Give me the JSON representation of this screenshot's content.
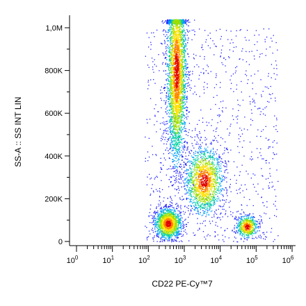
{
  "chart_data": {
    "type": "scatter",
    "subtype": "flow-cytometry-density-dot-plot",
    "xlabel": "CD22 PE-Cy™7",
    "ylabel": "SS-A :: SS INT LIN",
    "x_scale": "log",
    "x_range": [
      1,
      1000000
    ],
    "x_ticks": [
      {
        "value": 1,
        "base": "10",
        "exp": "0"
      },
      {
        "value": 10,
        "base": "10",
        "exp": "1"
      },
      {
        "value": 100,
        "base": "10",
        "exp": "2"
      },
      {
        "value": 1000,
        "base": "10",
        "exp": "3"
      },
      {
        "value": 10000,
        "base": "10",
        "exp": "4"
      },
      {
        "value": 100000,
        "base": "10",
        "exp": "5"
      },
      {
        "value": 1000000,
        "base": "10",
        "exp": "6"
      }
    ],
    "y_scale": "linear",
    "y_range": [
      0,
      1050000
    ],
    "y_ticks": [
      {
        "value": 0,
        "label": "0"
      },
      {
        "value": 200000,
        "label": "200K"
      },
      {
        "value": 400000,
        "label": "400K"
      },
      {
        "value": 600000,
        "label": "600K"
      },
      {
        "value": 800000,
        "label": "800K"
      },
      {
        "value": 1000000,
        "label": "1,0M"
      }
    ],
    "grid": false,
    "legend": "none",
    "density_colors": [
      "#1a1aff",
      "#00a0ff",
      "#00d0a0",
      "#a0e000",
      "#ffe000",
      "#ff8000",
      "#e00000"
    ],
    "populations": [
      {
        "x_center": 600,
        "x_spread_decades": 0.13,
        "y_center": 800000,
        "y_spread": 210000,
        "shape": "vertical-column",
        "relative_size": 4200
      },
      {
        "x_center": 350,
        "x_spread_decades": 0.18,
        "y_center": 85000,
        "y_spread": 35000,
        "relative_size": 1500
      },
      {
        "x_center": 3500,
        "x_spread_decades": 0.25,
        "y_center": 285000,
        "y_spread": 75000,
        "relative_size": 1700
      },
      {
        "x_center": 55000,
        "x_spread_decades": 0.14,
        "y_center": 70000,
        "y_spread": 25000,
        "relative_size": 600
      },
      {
        "x_center": 5000,
        "x_spread_decades": 0.8,
        "y_center": 350000,
        "y_spread": 350000,
        "shape": "sparse-background",
        "relative_size": 900
      }
    ]
  }
}
